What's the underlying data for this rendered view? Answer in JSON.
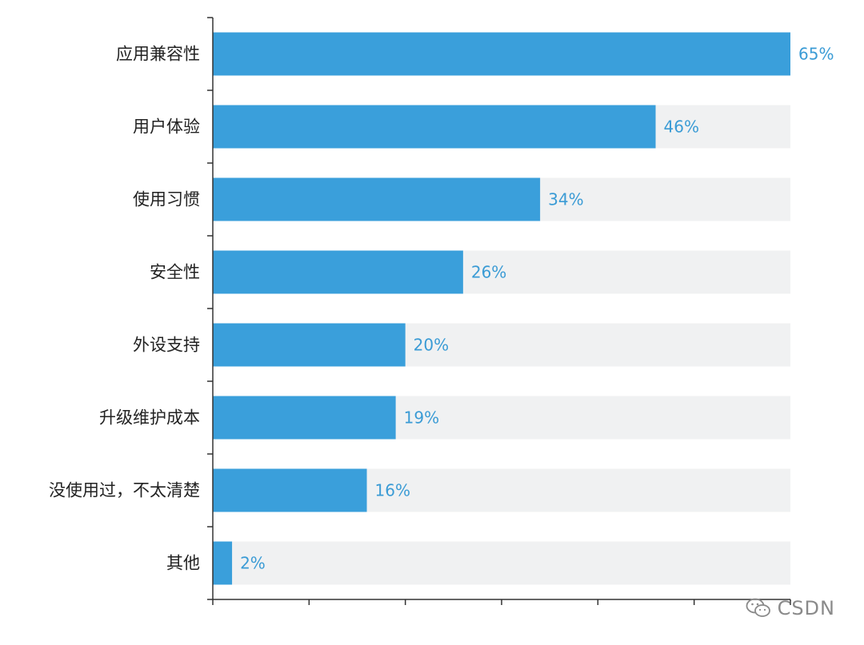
{
  "chart_data": {
    "type": "bar",
    "orientation": "horizontal",
    "categories": [
      "应用兼容性",
      "用户体验",
      "使用习惯",
      "安全性",
      "外设支持",
      "升级维护成本",
      "没使用过，不太清楚",
      "其他"
    ],
    "values": [
      65,
      46,
      34,
      26,
      20,
      19,
      16,
      2
    ],
    "value_labels": [
      "65%",
      "46%",
      "34%",
      "26%",
      "20%",
      "19%",
      "16%",
      "2%"
    ],
    "xlim": [
      0,
      60
    ],
    "background_track_max": 60,
    "grid": false,
    "legend": "none",
    "colors": {
      "bar": "#3a9fdb",
      "track": "#f0f1f2",
      "label": "#3a9bd5",
      "axis": "#333333"
    }
  },
  "watermark": {
    "icon": "wechat-icon",
    "text": "CSDN"
  }
}
